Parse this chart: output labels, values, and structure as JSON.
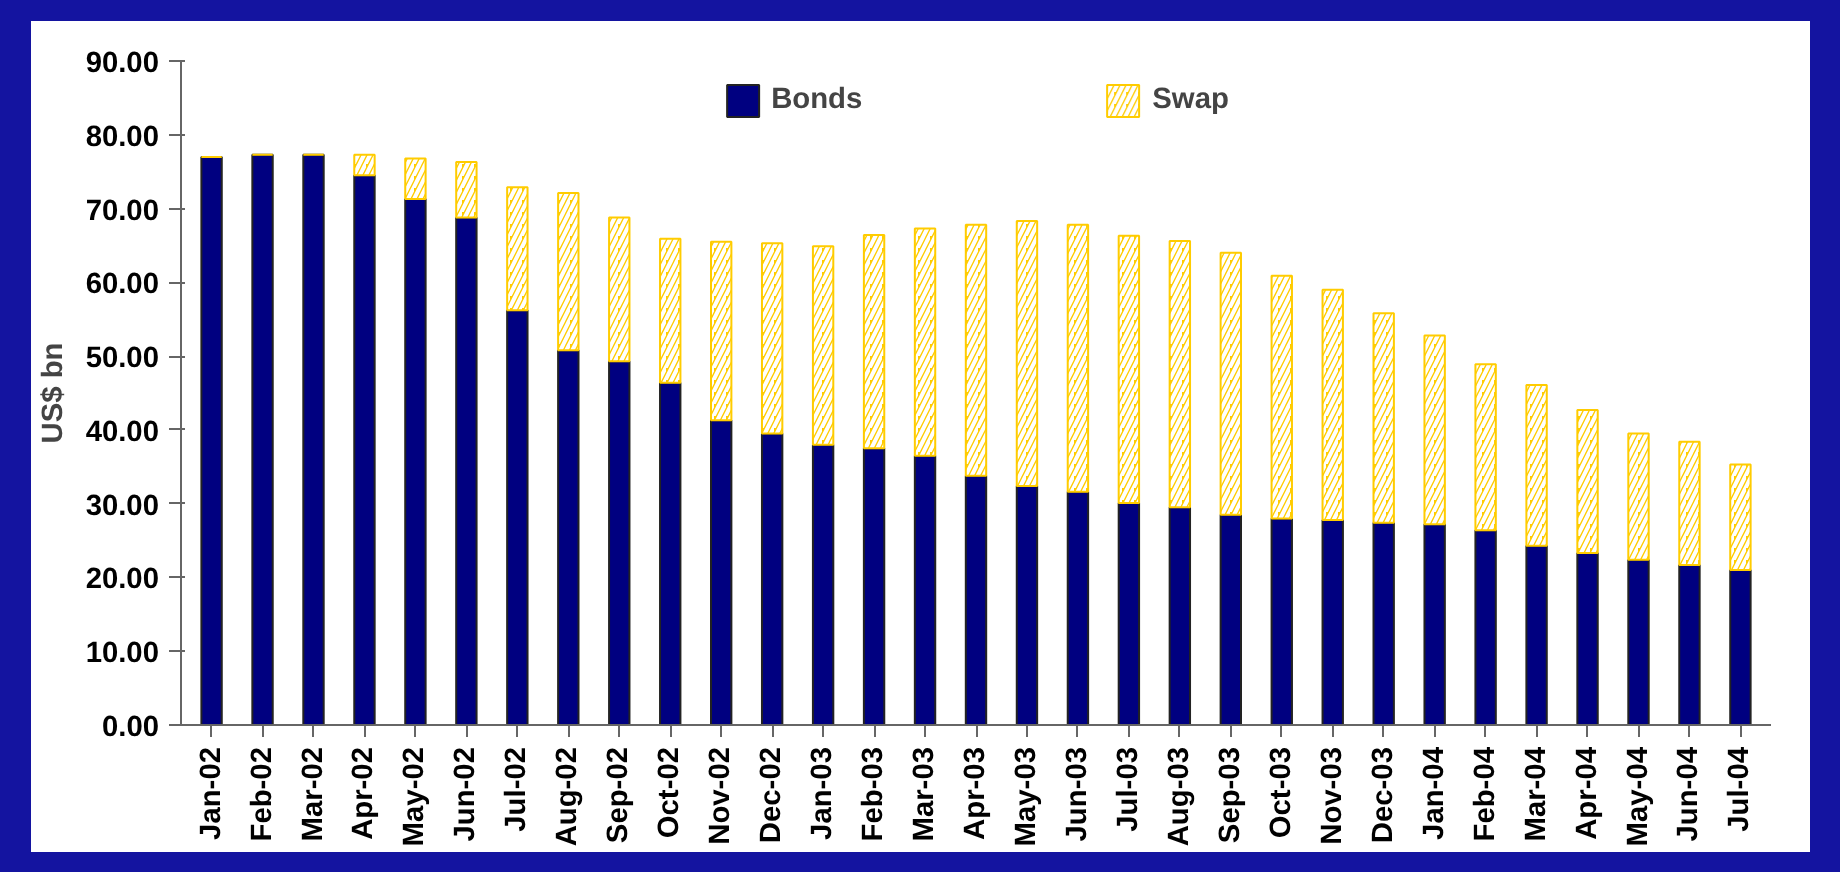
{
  "chart_data": {
    "type": "bar",
    "stacked": true,
    "ylabel": "US$ bn",
    "categories": [
      "Jan-02",
      "Feb-02",
      "Mar-02",
      "Apr-02",
      "May-02",
      "Jun-02",
      "Jul-02",
      "Aug-02",
      "Sep-02",
      "Oct-02",
      "Nov-02",
      "Dec-02",
      "Jan-03",
      "Feb-03",
      "Mar-03",
      "Apr-03",
      "May-03",
      "Jun-03",
      "Jul-03",
      "Aug-03",
      "Sep-03",
      "Oct-03",
      "Nov-03",
      "Dec-03",
      "Jan-04",
      "Feb-04",
      "Mar-04",
      "Apr-04",
      "May-04",
      "Jun-04",
      "Jul-04"
    ],
    "series": [
      {
        "name": "Bonds",
        "color": "#000080",
        "values": [
          77.0,
          77.3,
          77.3,
          74.5,
          71.3,
          68.8,
          56.2,
          50.8,
          49.3,
          46.4,
          41.3,
          39.5,
          38.0,
          37.5,
          36.5,
          33.8,
          32.4,
          31.6,
          30.1,
          29.5,
          28.5,
          28.0,
          27.8,
          27.4,
          27.2,
          26.4,
          24.3,
          23.3,
          22.4,
          21.7,
          21.0
        ]
      },
      {
        "name": "Swap",
        "color": "#ffcc00",
        "values": [
          0,
          0,
          0,
          2.8,
          5.5,
          7.5,
          16.7,
          21.3,
          19.5,
          19.5,
          24.2,
          25.8,
          26.9,
          28.9,
          30.8,
          34.0,
          35.9,
          36.2,
          36.2,
          36.1,
          35.5,
          32.9,
          31.2,
          28.4,
          25.6,
          22.5,
          21.8,
          19.4,
          17.1,
          16.7,
          14.3
        ]
      }
    ],
    "ylim": [
      0,
      90
    ],
    "yticks": [
      {
        "value": 0,
        "label": "0.00"
      },
      {
        "value": 10,
        "label": "10.00"
      },
      {
        "value": 20,
        "label": "20.00"
      },
      {
        "value": 30,
        "label": "30.00"
      },
      {
        "value": 40,
        "label": "40.00"
      },
      {
        "value": 50,
        "label": "50.00"
      },
      {
        "value": 60,
        "label": "60.00"
      },
      {
        "value": 70,
        "label": "70.00"
      },
      {
        "value": 80,
        "label": "80.00"
      },
      {
        "value": 90,
        "label": "90.00"
      }
    ],
    "grid": false,
    "legend": "top"
  }
}
